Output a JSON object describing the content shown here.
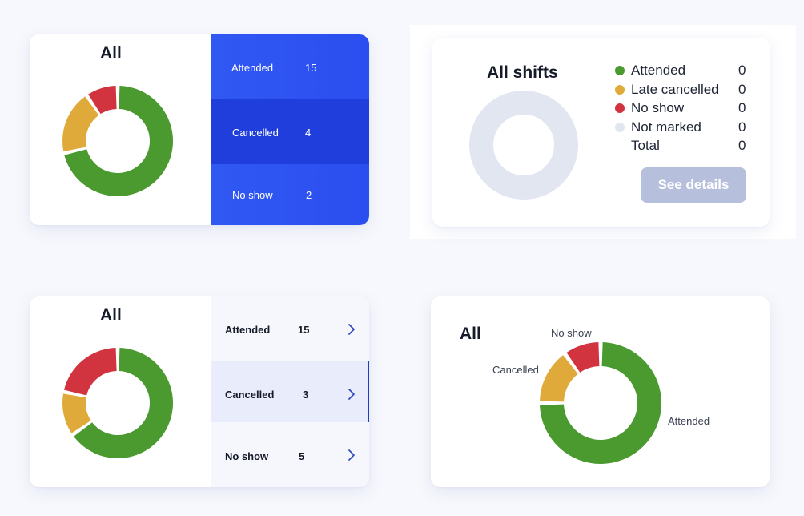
{
  "colors": {
    "attended": "#4a9a2f",
    "cancelled": "#e0aa3a",
    "no_show": "#d2343f",
    "not_marked": "#e1e6f1",
    "accent_blue": "#2f55f0",
    "accent_blue_dark": "#1f3fdc",
    "chevron": "#2f4bc4"
  },
  "card1": {
    "title": "All",
    "rows": [
      {
        "label": "Attended",
        "value": "15"
      },
      {
        "label": "Cancelled",
        "value": "4"
      },
      {
        "label": "No show",
        "value": "2"
      }
    ],
    "selected_index": 1
  },
  "card2": {
    "title": "All shifts",
    "legend": [
      {
        "label": "Attended",
        "value": "0",
        "color_key": "attended"
      },
      {
        "label": "Late cancelled",
        "value": "0",
        "color_key": "cancelled"
      },
      {
        "label": "No show",
        "value": "0",
        "color_key": "no_show"
      },
      {
        "label": "Not marked",
        "value": "0",
        "color_key": "not_marked"
      },
      {
        "label": "Total",
        "value": "0",
        "color_key": null
      }
    ],
    "button_label": "See details"
  },
  "card3": {
    "title": "All",
    "rows": [
      {
        "label": "Attended",
        "value": "15",
        "icon": "chevron-right-icon"
      },
      {
        "label": "Cancelled",
        "value": "3",
        "icon": "chevron-right-icon"
      },
      {
        "label": "No show",
        "value": "5",
        "icon": "chevron-right-icon"
      }
    ],
    "selected_index": 1
  },
  "card4": {
    "title": "All",
    "callouts": {
      "no_show": "No show",
      "cancelled": "Cancelled",
      "attended": "Attended"
    }
  },
  "chart_data": [
    {
      "type": "pie",
      "style": "donut",
      "categories": [
        "Attended",
        "Cancelled",
        "No show"
      ],
      "values": [
        15,
        4,
        2
      ]
    },
    {
      "type": "pie",
      "style": "donut",
      "categories": [
        "Attended",
        "Late cancelled",
        "No show",
        "Not marked"
      ],
      "values": [
        0,
        0,
        0,
        0
      ]
    },
    {
      "type": "pie",
      "style": "donut",
      "categories": [
        "Attended",
        "Cancelled",
        "No show"
      ],
      "values": [
        15,
        3,
        5
      ]
    },
    {
      "type": "pie",
      "style": "donut",
      "categories": [
        "Attended",
        "Cancelled",
        "No show"
      ],
      "values": [
        15,
        3,
        2
      ]
    }
  ]
}
